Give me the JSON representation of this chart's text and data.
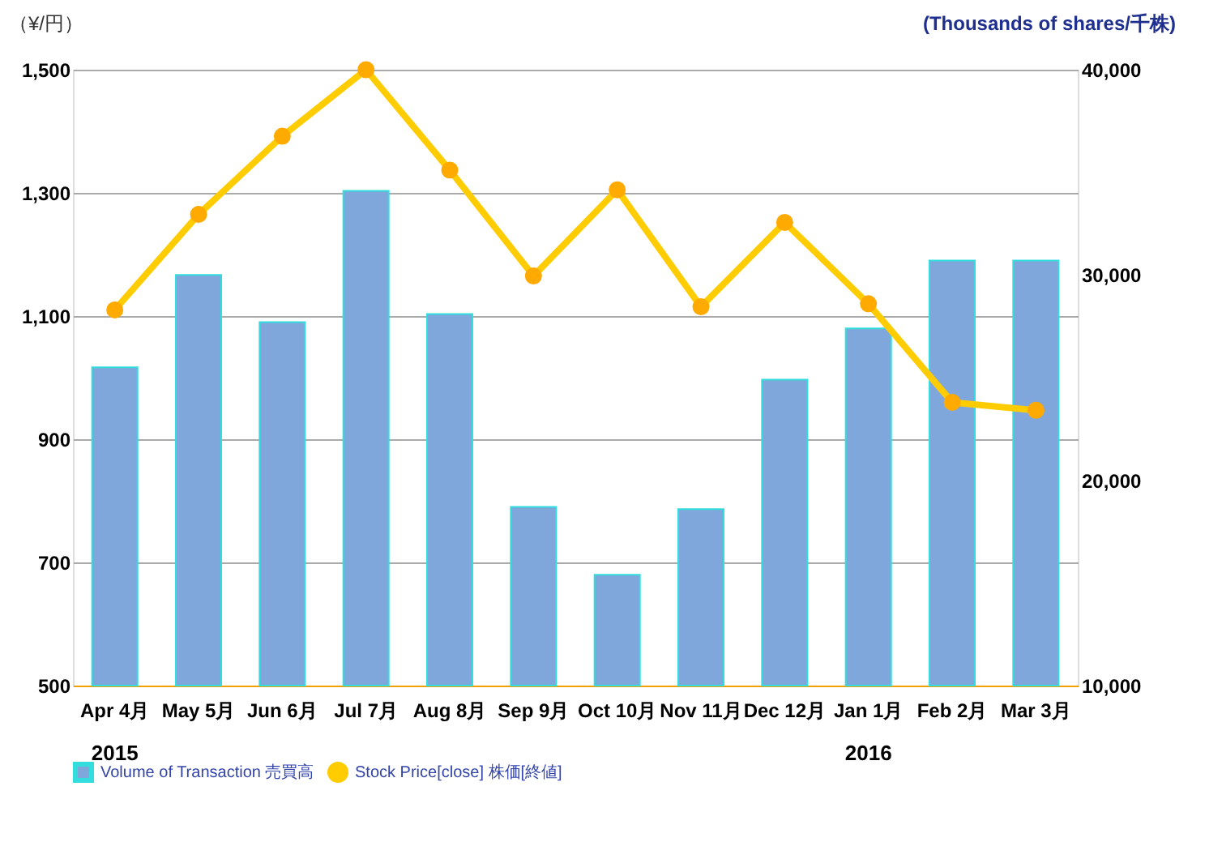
{
  "chart_data": {
    "type": "bar",
    "categories": [
      "Apr 4月",
      "May 5月",
      "Jun 6月",
      "Jul 7月",
      "Aug 8月",
      "Sep 9月",
      "Oct 10月",
      "Nov 11月",
      "Dec 12月",
      "Jan 1月",
      "Feb 2月",
      "Mar 3月"
    ],
    "series": [
      {
        "name": "Volume of Transaction 売買高",
        "color": "#7fa7dc",
        "axis": "y2",
        "values": [
          25500,
          30000,
          27700,
          34100,
          28100,
          18700,
          15400,
          18600,
          24900,
          27400,
          30700,
          30700
        ]
      },
      {
        "name": "Stock Price[close] 株価[終値]",
        "type": "line",
        "color": "#ffcc00",
        "marker": "circle",
        "values": [
          1110,
          1265,
          1392,
          1500,
          1337,
          1165,
          1305,
          1115,
          1252,
          1120,
          960,
          947
        ]
      }
    ],
    "ylabel": "（¥/円）",
    "y2label": "(Thousands of shares/千株)",
    "ylim": [
      500,
      1500
    ],
    "yticks": [
      500,
      700,
      900,
      {
        "value": 1100,
        "label": "1,100"
      },
      {
        "value": 1300,
        "label": "1,300"
      },
      {
        "value": 1500,
        "label": "1,500"
      }
    ],
    "y2lim": [
      10000,
      40000
    ],
    "y2ticks": [
      {
        "value": 10000,
        "label": "10,000"
      },
      {
        "value": 20000,
        "label": "20,000"
      },
      {
        "value": 30000,
        "label": "30,000"
      },
      {
        "value": 40000,
        "label": "40,000"
      }
    ],
    "annotations": [
      "2015",
      "2016"
    ],
    "grid": "y",
    "legend": "bottom"
  }
}
